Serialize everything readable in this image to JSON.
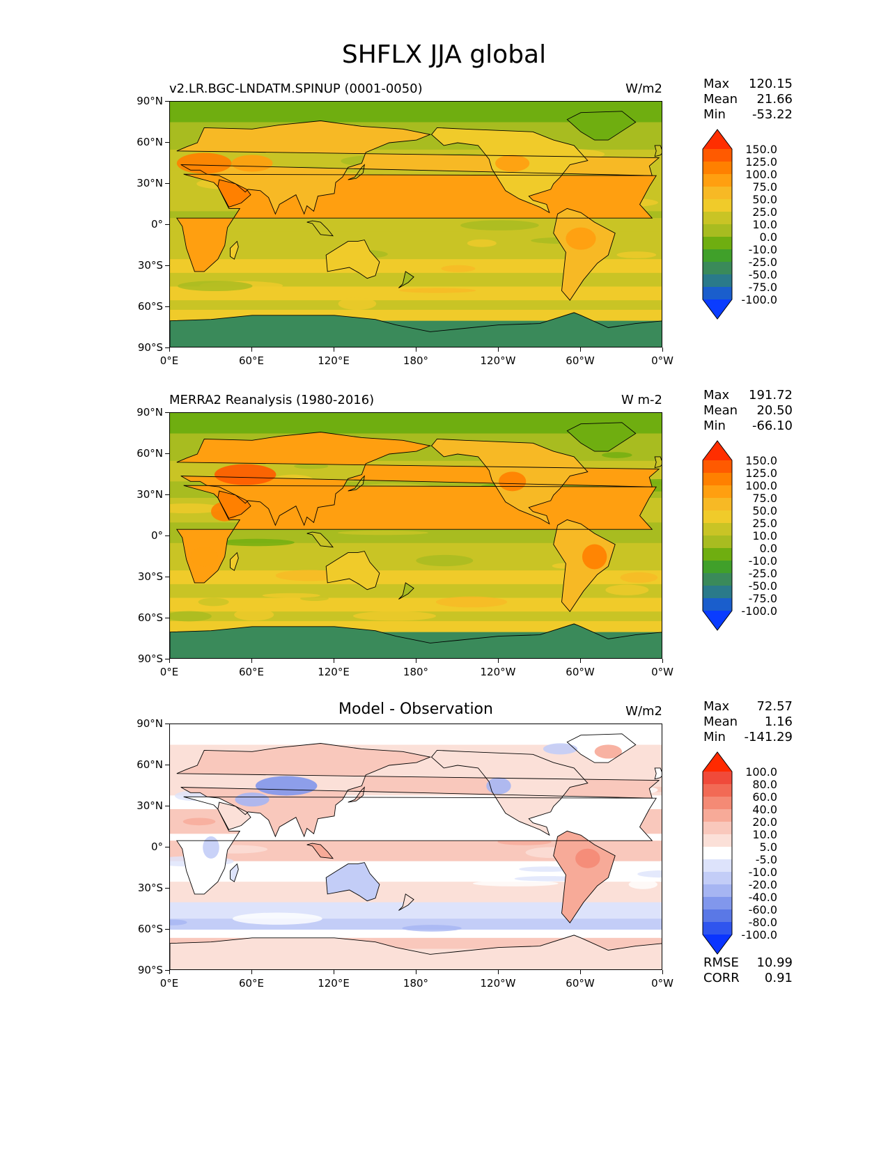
{
  "figure_title": "SHFLX JJA global",
  "x_ticks": [
    "0°E",
    "60°E",
    "120°E",
    "180°",
    "120°W",
    "60°W",
    "0°W"
  ],
  "y_ticks": [
    "90°N",
    "60°N",
    "30°N",
    "0°",
    "30°S",
    "60°S",
    "90°S"
  ],
  "panels": [
    {
      "title_left": "v2.LR.BGC-LNDATM.SPINUP (0001-0050)",
      "title_center": "",
      "units": "W/m2",
      "stats": {
        "max_label": "Max",
        "max": "120.15",
        "mean_label": "Mean",
        "mean": "21.66",
        "min_label": "Min",
        "min": "-53.22"
      },
      "colorbar": {
        "labels": [
          "150.0",
          "125.0",
          "100.0",
          "75.0",
          "50.0",
          "25.0",
          "10.0",
          "0.0",
          "-10.0",
          "-25.0",
          "-50.0",
          "-75.0",
          "-100.0"
        ],
        "colors": [
          "#ff2e00",
          "#ff5a00",
          "#ff8000",
          "#ff9f10",
          "#f7b925",
          "#f0cb2a",
          "#c9c425",
          "#a8bc20",
          "#6fae10",
          "#40a02a",
          "#3a8a5a",
          "#2a7a8a",
          "#1a5ecc",
          "#0a3cff"
        ]
      }
    },
    {
      "title_left": "MERRA2 Reanalysis (1980-2016)",
      "title_center": "",
      "units": "W m-2",
      "stats": {
        "max_label": "Max",
        "max": "191.72",
        "mean_label": "Mean",
        "mean": "20.50",
        "min_label": "Min",
        "min": "-66.10"
      },
      "colorbar": {
        "labels": [
          "150.0",
          "125.0",
          "100.0",
          "75.0",
          "50.0",
          "25.0",
          "10.0",
          "0.0",
          "-10.0",
          "-25.0",
          "-50.0",
          "-75.0",
          "-100.0"
        ],
        "colors": [
          "#ff2e00",
          "#ff5a00",
          "#ff8000",
          "#ff9f10",
          "#f7b925",
          "#f0cb2a",
          "#c9c425",
          "#a8bc20",
          "#6fae10",
          "#40a02a",
          "#3a8a5a",
          "#2a7a8a",
          "#1a5ecc",
          "#0a3cff"
        ]
      }
    },
    {
      "title_left": "",
      "title_center": "Model - Observation",
      "units": "W/m2",
      "stats": {
        "max_label": "Max",
        "max": "72.57",
        "mean_label": "Mean",
        "mean": "1.16",
        "min_label": "Min",
        "min": "-141.29"
      },
      "rmse_label": "RMSE",
      "rmse": "10.99",
      "corr_label": "CORR",
      "corr": "0.91",
      "colorbar": {
        "labels": [
          "100.0",
          "80.0",
          "60.0",
          "40.0",
          "20.0",
          "10.0",
          "5.0",
          "-5.0",
          "-10.0",
          "-20.0",
          "-40.0",
          "-60.0",
          "-80.0",
          "-100.0"
        ],
        "colors": [
          "#ff2a00",
          "#f04a3a",
          "#f26a55",
          "#f48a75",
          "#f7aa98",
          "#f9c8bc",
          "#fbe0d8",
          "#ffffff",
          "#dde3fb",
          "#c3cdf7",
          "#a6b5f2",
          "#8197ec",
          "#5a78e6",
          "#2f55ee",
          "#0a34ff"
        ]
      }
    }
  ]
}
